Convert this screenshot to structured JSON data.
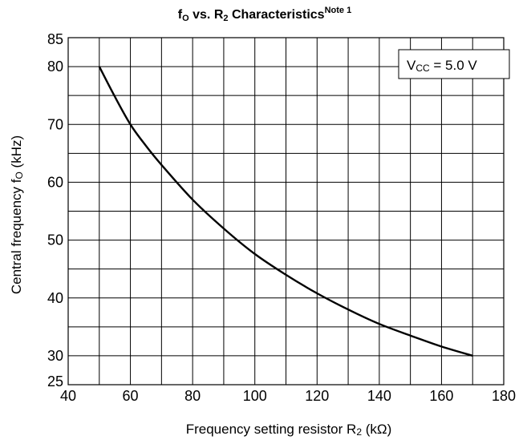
{
  "chart_data": {
    "type": "line",
    "title": {
      "f": "f",
      "f_sub": "O",
      "mid": " vs. R",
      "r_sub": "2",
      "end": " Characteristics",
      "note": "Note 1"
    },
    "xlabel": {
      "text": "Frequency setting resistor R",
      "sub": "2",
      "unit": " (kΩ)"
    },
    "ylabel": {
      "text": "Central frequency f",
      "sub": "O",
      "unit": " (kHz)"
    },
    "condition": {
      "v": "V",
      "sub": "CC",
      "rest": " = 5.0 V"
    },
    "xlim": [
      40,
      180
    ],
    "ylim": [
      25,
      85
    ],
    "x_ticks": [
      "40",
      "60",
      "80",
      "100",
      "120",
      "140",
      "160",
      "180"
    ],
    "x_tick_values": [
      40,
      60,
      80,
      100,
      120,
      140,
      160,
      180
    ],
    "y_ticks": [
      "25",
      "30",
      "40",
      "50",
      "60",
      "70",
      "80",
      "85"
    ],
    "y_tick_values": [
      25,
      30,
      40,
      50,
      60,
      70,
      80,
      85
    ],
    "x_grid": [
      40,
      50,
      60,
      70,
      80,
      90,
      100,
      110,
      120,
      130,
      140,
      150,
      160,
      170,
      180
    ],
    "y_grid": [
      25,
      30,
      35,
      40,
      45,
      50,
      55,
      60,
      65,
      70,
      75,
      80,
      85
    ],
    "grid": true,
    "series": [
      {
        "x": [
          50,
          55,
          60,
          65,
          70,
          80,
          90,
          100,
          110,
          120,
          130,
          140,
          150,
          160,
          170
        ],
        "y": [
          80,
          74.8,
          70,
          66.3,
          63,
          57,
          52,
          47.6,
          44,
          40.8,
          38,
          35.5,
          33.5,
          31.6,
          30
        ]
      }
    ]
  }
}
